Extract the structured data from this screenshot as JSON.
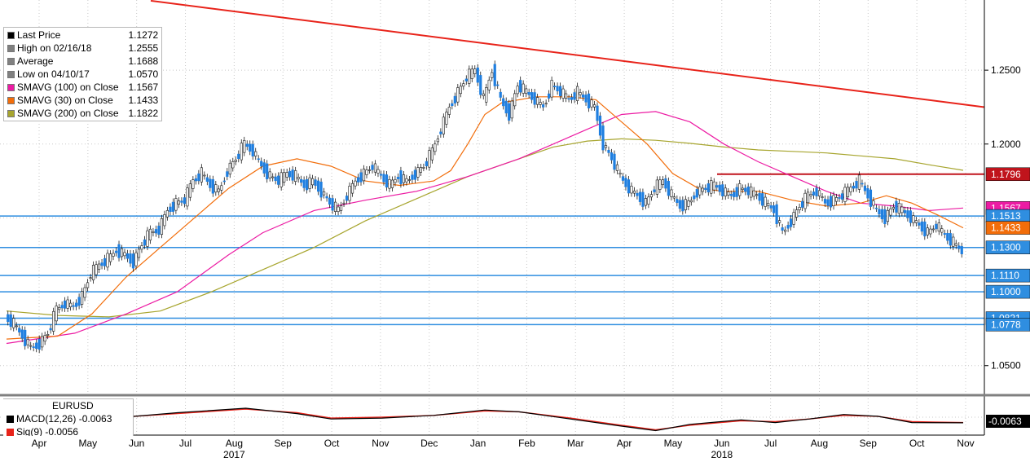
{
  "chart_data": {
    "type": "candlestick",
    "symbol": "EURUSD",
    "y_range": [
      1.03,
      1.2975
    ],
    "x_months": [
      {
        "label": "Apr",
        "year": ""
      },
      {
        "label": "May",
        "year": ""
      },
      {
        "label": "Jun",
        "year": ""
      },
      {
        "label": "Jul",
        "year": ""
      },
      {
        "label": "Aug",
        "year": "2017"
      },
      {
        "label": "Sep",
        "year": ""
      },
      {
        "label": "Oct",
        "year": ""
      },
      {
        "label": "Nov",
        "year": ""
      },
      {
        "label": "Dec",
        "year": ""
      },
      {
        "label": "Jan",
        "year": ""
      },
      {
        "label": "Feb",
        "year": ""
      },
      {
        "label": "Mar",
        "year": ""
      },
      {
        "label": "Apr",
        "year": ""
      },
      {
        "label": "May",
        "year": ""
      },
      {
        "label": "Jun",
        "year": "2018"
      },
      {
        "label": "Jul",
        "year": ""
      },
      {
        "label": "Aug",
        "year": ""
      },
      {
        "label": "Sep",
        "year": ""
      },
      {
        "label": "Oct",
        "year": ""
      },
      {
        "label": "Nov",
        "year": ""
      }
    ],
    "y_ticks": [
      "1.2500",
      "1.2000",
      "1.0500"
    ],
    "price_path": [
      [
        0,
        1.083
      ],
      [
        1,
        1.078
      ],
      [
        2,
        1.07
      ],
      [
        3,
        1.062
      ],
      [
        4,
        1.065
      ],
      [
        5,
        1.072
      ],
      [
        6,
        1.088
      ],
      [
        7,
        1.092
      ],
      [
        8,
        1.09
      ],
      [
        9,
        1.097
      ],
      [
        10,
        1.112
      ],
      [
        11,
        1.118
      ],
      [
        12,
        1.122
      ],
      [
        13,
        1.128
      ],
      [
        14,
        1.125
      ],
      [
        15,
        1.12
      ],
      [
        16,
        1.132
      ],
      [
        17,
        1.14
      ],
      [
        18,
        1.142
      ],
      [
        19,
        1.155
      ],
      [
        20,
        1.16
      ],
      [
        21,
        1.162
      ],
      [
        22,
        1.175
      ],
      [
        23,
        1.18
      ],
      [
        24,
        1.172
      ],
      [
        25,
        1.168
      ],
      [
        26,
        1.182
      ],
      [
        27,
        1.19
      ],
      [
        28,
        1.2
      ],
      [
        29,
        1.195
      ],
      [
        30,
        1.185
      ],
      [
        31,
        1.178
      ],
      [
        32,
        1.175
      ],
      [
        33,
        1.18
      ],
      [
        34,
        1.178
      ],
      [
        35,
        1.172
      ],
      [
        36,
        1.175
      ],
      [
        37,
        1.168
      ],
      [
        38,
        1.16
      ],
      [
        39,
        1.155
      ],
      [
        40,
        1.165
      ],
      [
        41,
        1.175
      ],
      [
        42,
        1.18
      ],
      [
        43,
        1.185
      ],
      [
        44,
        1.178
      ],
      [
        45,
        1.172
      ],
      [
        46,
        1.178
      ],
      [
        47,
        1.175
      ],
      [
        48,
        1.18
      ],
      [
        49,
        1.185
      ],
      [
        50,
        1.195
      ],
      [
        51,
        1.21
      ],
      [
        52,
        1.225
      ],
      [
        53,
        1.235
      ],
      [
        54,
        1.245
      ],
      [
        55,
        1.25
      ],
      [
        56,
        1.23
      ],
      [
        57,
        1.25
      ],
      [
        58,
        1.23
      ],
      [
        59,
        1.22
      ],
      [
        60,
        1.24
      ],
      [
        61,
        1.235
      ],
      [
        62,
        1.23
      ],
      [
        63,
        1.225
      ],
      [
        64,
        1.24
      ],
      [
        65,
        1.235
      ],
      [
        66,
        1.23
      ],
      [
        67,
        1.235
      ],
      [
        68,
        1.23
      ],
      [
        69,
        1.225
      ],
      [
        70,
        1.2
      ],
      [
        71,
        1.19
      ],
      [
        72,
        1.178
      ],
      [
        73,
        1.17
      ],
      [
        74,
        1.165
      ],
      [
        75,
        1.16
      ],
      [
        76,
        1.17
      ],
      [
        77,
        1.175
      ],
      [
        78,
        1.165
      ],
      [
        79,
        1.158
      ],
      [
        80,
        1.16
      ],
      [
        81,
        1.168
      ],
      [
        82,
        1.17
      ],
      [
        83,
        1.172
      ],
      [
        84,
        1.168
      ],
      [
        85,
        1.165
      ],
      [
        86,
        1.17
      ],
      [
        87,
        1.168
      ],
      [
        88,
        1.165
      ],
      [
        89,
        1.16
      ],
      [
        90,
        1.155
      ],
      [
        91,
        1.14
      ],
      [
        92,
        1.148
      ],
      [
        93,
        1.158
      ],
      [
        94,
        1.165
      ],
      [
        95,
        1.168
      ],
      [
        96,
        1.16
      ],
      [
        97,
        1.162
      ],
      [
        98,
        1.165
      ],
      [
        99,
        1.17
      ],
      [
        100,
        1.175
      ],
      [
        101,
        1.165
      ],
      [
        102,
        1.155
      ],
      [
        103,
        1.15
      ],
      [
        104,
        1.158
      ],
      [
        105,
        1.155
      ],
      [
        106,
        1.15
      ],
      [
        107,
        1.145
      ],
      [
        108,
        1.14
      ],
      [
        109,
        1.145
      ],
      [
        110,
        1.138
      ],
      [
        111,
        1.133
      ],
      [
        112,
        1.1272
      ]
    ],
    "sma30_path": [
      [
        0,
        1.068
      ],
      [
        6,
        1.07
      ],
      [
        10,
        1.085
      ],
      [
        14,
        1.11
      ],
      [
        18,
        1.13
      ],
      [
        22,
        1.15
      ],
      [
        26,
        1.17
      ],
      [
        30,
        1.185
      ],
      [
        34,
        1.19
      ],
      [
        38,
        1.185
      ],
      [
        42,
        1.175
      ],
      [
        46,
        1.172
      ],
      [
        50,
        1.175
      ],
      [
        52,
        1.182
      ],
      [
        54,
        1.2
      ],
      [
        56,
        1.22
      ],
      [
        58,
        1.228
      ],
      [
        62,
        1.232
      ],
      [
        66,
        1.232
      ],
      [
        69,
        1.23
      ],
      [
        72,
        1.215
      ],
      [
        75,
        1.2
      ],
      [
        78,
        1.18
      ],
      [
        81,
        1.17
      ],
      [
        84,
        1.168
      ],
      [
        88,
        1.168
      ],
      [
        92,
        1.162
      ],
      [
        96,
        1.158
      ],
      [
        100,
        1.16
      ],
      [
        103,
        1.165
      ],
      [
        106,
        1.16
      ],
      [
        109,
        1.152
      ],
      [
        112,
        1.1433
      ]
    ],
    "sma100_path": [
      [
        0,
        1.065
      ],
      [
        8,
        1.072
      ],
      [
        14,
        1.085
      ],
      [
        20,
        1.1
      ],
      [
        26,
        1.125
      ],
      [
        30,
        1.14
      ],
      [
        36,
        1.155
      ],
      [
        42,
        1.162
      ],
      [
        48,
        1.168
      ],
      [
        54,
        1.178
      ],
      [
        60,
        1.19
      ],
      [
        64,
        1.2
      ],
      [
        68,
        1.21
      ],
      [
        72,
        1.22
      ],
      [
        76,
        1.222
      ],
      [
        80,
        1.215
      ],
      [
        84,
        1.2
      ],
      [
        88,
        1.188
      ],
      [
        92,
        1.178
      ],
      [
        96,
        1.168
      ],
      [
        100,
        1.16
      ],
      [
        104,
        1.158
      ],
      [
        108,
        1.155
      ],
      [
        112,
        1.1567
      ]
    ],
    "sma200_path": [
      [
        0,
        1.087
      ],
      [
        6,
        1.084
      ],
      [
        12,
        1.083
      ],
      [
        18,
        1.087
      ],
      [
        24,
        1.1
      ],
      [
        30,
        1.115
      ],
      [
        36,
        1.13
      ],
      [
        42,
        1.148
      ],
      [
        48,
        1.163
      ],
      [
        54,
        1.178
      ],
      [
        60,
        1.19
      ],
      [
        64,
        1.198
      ],
      [
        68,
        1.202
      ],
      [
        72,
        1.2035
      ],
      [
        76,
        1.2025
      ],
      [
        80,
        1.2005
      ],
      [
        84,
        1.198
      ],
      [
        88,
        1.196
      ],
      [
        92,
        1.195
      ],
      [
        96,
        1.194
      ],
      [
        100,
        1.192
      ],
      [
        104,
        1.19
      ],
      [
        108,
        1.186
      ],
      [
        112,
        1.1822
      ]
    ],
    "macd_line": [
      [
        0,
        0
      ],
      [
        10,
        -0.003
      ],
      [
        20,
        0.005
      ],
      [
        28,
        0.01
      ],
      [
        34,
        0.004
      ],
      [
        38,
        -0.002
      ],
      [
        44,
        -0.001
      ],
      [
        50,
        0.002
      ],
      [
        56,
        0.008
      ],
      [
        60,
        0.006
      ],
      [
        66,
        -0.002
      ],
      [
        72,
        -0.01
      ],
      [
        76,
        -0.015
      ],
      [
        80,
        -0.008
      ],
      [
        86,
        -0.003
      ],
      [
        90,
        -0.006
      ],
      [
        94,
        -0.002
      ],
      [
        98,
        0.003
      ],
      [
        102,
        0.001
      ],
      [
        106,
        -0.006
      ],
      [
        112,
        -0.0063
      ]
    ],
    "signal_line": [
      [
        0,
        0.001
      ],
      [
        10,
        -0.002
      ],
      [
        20,
        0.004
      ],
      [
        28,
        0.009
      ],
      [
        34,
        0.005
      ],
      [
        38,
        -0.001
      ],
      [
        44,
        0
      ],
      [
        50,
        0.002
      ],
      [
        56,
        0.007
      ],
      [
        60,
        0.006
      ],
      [
        66,
        -0.001
      ],
      [
        72,
        -0.009
      ],
      [
        76,
        -0.014
      ],
      [
        80,
        -0.009
      ],
      [
        86,
        -0.004
      ],
      [
        90,
        -0.005
      ],
      [
        94,
        -0.002
      ],
      [
        98,
        0.002
      ],
      [
        102,
        0.001
      ],
      [
        106,
        -0.005
      ],
      [
        112,
        -0.006
      ]
    ],
    "legend": [
      {
        "swatch": "#000000",
        "label": "Last Price",
        "value": "1.1272"
      },
      {
        "swatch": "#808080",
        "label": "High on 02/16/18",
        "value": "1.2555"
      },
      {
        "swatch": "#808080",
        "label": "Average",
        "value": "1.1688"
      },
      {
        "swatch": "#808080",
        "label": "Low on 04/10/17",
        "value": "1.0570"
      },
      {
        "swatch": "#ec1ba3",
        "label": "SMAVG (100)  on Close",
        "value": "1.1567"
      },
      {
        "swatch": "#f26d0a",
        "label": "SMAVG (30)  on Close",
        "value": "1.1433"
      },
      {
        "swatch": "#a7a52e",
        "label": "SMAVG (200)  on Close",
        "value": "1.1822"
      }
    ],
    "hlines": [
      {
        "value": 1.1796,
        "color": "#c0141c",
        "label": "1.1796",
        "span": "from Jun 2018"
      },
      {
        "value": 1.1513,
        "color": "#2f8ee0",
        "label": "1.1513",
        "span": "full"
      },
      {
        "value": 1.13,
        "color": "#2f8ee0",
        "label": "1.1300",
        "span": "full"
      },
      {
        "value": 1.111,
        "color": "#2f8ee0",
        "label": "1.1110",
        "span": "full"
      },
      {
        "value": 1.1,
        "color": "#2f8ee0",
        "label": "1.1000",
        "span": "full"
      },
      {
        "value": 1.0821,
        "color": "#2f8ee0",
        "label": "1.0821",
        "span": "full"
      },
      {
        "value": 1.0778,
        "color": "#2f8ee0",
        "label": "1.0778",
        "span": "full"
      }
    ],
    "trendline": {
      "from_value": 1.297,
      "to_value": 1.225,
      "color": "#e8231a"
    },
    "value_tags": [
      {
        "value": 1.1796,
        "bg": "#c0141c",
        "fg": "#ffffff",
        "label": "1.1796"
      },
      {
        "value": 1.1567,
        "bg": "#ec1ba3",
        "fg": "#ffffff",
        "label": "1.1567"
      },
      {
        "value": 1.1513,
        "bg": "#2f8ee0",
        "fg": "#ffffff",
        "label": "1.1513"
      },
      {
        "value": 1.1433,
        "bg": "#f26d0a",
        "fg": "#ffffff",
        "label": "1.1433"
      },
      {
        "value": 1.13,
        "bg": "#2f8ee0",
        "fg": "#ffffff",
        "label": "1.1300"
      },
      {
        "value": 1.111,
        "bg": "#2f8ee0",
        "fg": "#ffffff",
        "label": "1.1110"
      },
      {
        "value": 1.1,
        "bg": "#2f8ee0",
        "fg": "#ffffff",
        "label": "1.1000"
      },
      {
        "value": 1.0821,
        "bg": "#2f8ee0",
        "fg": "#ffffff",
        "label": "1.0821"
      },
      {
        "value": 1.0778,
        "bg": "#2f8ee0",
        "fg": "#ffffff",
        "label": "1.0778"
      }
    ],
    "macd_tag": {
      "label": "-0.0063",
      "bg": "#000000",
      "fg": "#ffffff"
    }
  },
  "macd_legend": {
    "title": "EURUSD",
    "macd_label": "MACD(12,26)",
    "macd_value": "-0.0063",
    "signal_label": "Sig(9)",
    "signal_value": "-0.0056",
    "macd_color": "#000000",
    "signal_color": "#e8231a"
  }
}
